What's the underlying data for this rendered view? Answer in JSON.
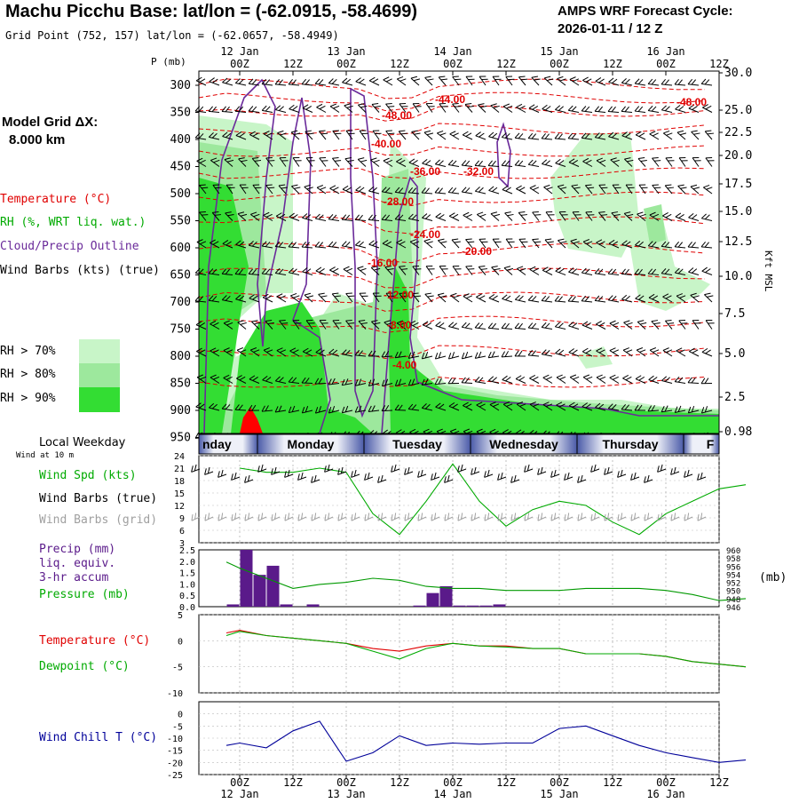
{
  "header": {
    "title": "Machu Picchu Base:  lat/lon = (-62.0915, -58.4699)",
    "subtitle": "Grid Point (752, 157) lat/lon = (-62.0657, -58.4949)",
    "cycle_line1": "AMPS WRF Forecast Cycle:",
    "cycle_line2": "2026-01-11 / 12  Z",
    "grid_label_line1": "Model Grid ΔX:",
    "grid_label_line2": "8.000 km"
  },
  "colors": {
    "temperature": "#e00000",
    "rh": "#00aa00",
    "cloud": "#6a2a9a",
    "precip": "#5a1a8a",
    "pressure": "#009900",
    "windchill": "#000099",
    "rh70": "#c8f5c8",
    "rh80": "#9de89d",
    "rh90": "#33dd33",
    "grid_barbs": "#a0a0a0"
  },
  "time_axis": {
    "date_labels_top": [
      "12 Jan",
      "13 Jan",
      "14 Jan",
      "15 Jan",
      "16 Jan"
    ],
    "hour_labels": [
      "00Z",
      "12Z",
      "00Z",
      "12Z",
      "00Z",
      "12Z",
      "00Z",
      "12Z",
      "00Z",
      "12Z"
    ],
    "weekdays": [
      "nday",
      "Monday",
      "Tuesday",
      "Wednesday",
      "Thursday",
      "F"
    ],
    "weekday_label": "Local Weekday"
  },
  "upper_panel": {
    "p_axis_label": "P (mb)",
    "pressure_ticks": [
      "300",
      "350",
      "400",
      "450",
      "500",
      "550",
      "600",
      "650",
      "700",
      "750",
      "800",
      "850",
      "900",
      "950"
    ],
    "height_ticks": [
      "30.0",
      "25.0",
      "22.5",
      "20.0",
      "17.5",
      "15.0",
      "12.5",
      "10.0",
      "7.5",
      "5.0",
      "2.5",
      "0.98"
    ],
    "height_axis_label": "Kft MSL",
    "legend": {
      "temperature": "Temperature (°C)",
      "rh": "RH (%, WRT liq. wat.)",
      "cloud": "Cloud/Precip Outline",
      "wind": "Wind Barbs (kts) (true)"
    },
    "rh_legend": [
      "RH > 70%",
      "RH > 80%",
      "RH > 90%"
    ],
    "isotherm_labels": [
      "-44.00",
      "-48.00",
      "-48.00",
      "-40.00",
      "-36.00",
      "-32.00",
      "-28.00",
      "-24.00",
      "-20.00",
      "-16.00",
      "-12.00",
      "-8.00",
      "-4.00"
    ]
  },
  "wind_panel": {
    "title": "Wind at 10 m",
    "labels": [
      "Wind Spd (kts)",
      "Wind Barbs (true)",
      "Wind Barbs (grid)"
    ],
    "yticks": [
      "24",
      "21",
      "18",
      "15",
      "12",
      "9",
      "6",
      "3"
    ]
  },
  "precip_panel": {
    "labels": [
      "Precip (mm)",
      "liq. equiv.",
      "3-hr accum",
      "Pressure (mb)"
    ],
    "left_ticks": [
      "2.5",
      "2.0",
      "1.5",
      "1.0",
      "0.5",
      "0.0"
    ],
    "right_ticks": [
      "960",
      "958",
      "956",
      "954",
      "952",
      "950",
      "948",
      "946"
    ],
    "unit": "(mb)"
  },
  "temp_panel": {
    "labels": [
      "Temperature (°C)",
      "Dewpoint (°C)"
    ],
    "yticks": [
      "5",
      "0",
      "-5",
      "-10"
    ]
  },
  "chill_panel": {
    "label": "Wind Chill T (°C)",
    "yticks": [
      "0",
      "-5",
      "-10",
      "-15",
      "-20",
      "-25"
    ]
  },
  "chart_data": [
    {
      "type": "line",
      "name": "wind-speed-10m",
      "x_hours": [
        0,
        6,
        12,
        18,
        24,
        30,
        36,
        42,
        48,
        54,
        60,
        66,
        72,
        78,
        84,
        90,
        96,
        102,
        108,
        114
      ],
      "series": [
        {
          "name": "Wind Spd (kts)",
          "values": [
            21,
            20,
            20,
            21,
            20,
            10,
            5,
            13,
            22,
            13,
            7,
            11,
            13,
            12,
            8,
            5,
            10,
            13,
            16,
            17
          ]
        }
      ],
      "ylim": [
        3,
        24
      ]
    },
    {
      "type": "bar",
      "name": "precip-3hr",
      "x_hours": [
        -1.5,
        1.5,
        4.5,
        7.5,
        10.5,
        13.5,
        16.5,
        19.5,
        22.5,
        25.5,
        28.5,
        31.5,
        34.5,
        37.5,
        40.5,
        43.5,
        46.5,
        49.5,
        52.5,
        55.5,
        58.5,
        61.5,
        64.5
      ],
      "values": [
        0.1,
        2.5,
        1.4,
        1.8,
        0.1,
        0,
        0.1,
        0,
        0,
        0,
        0,
        0,
        0,
        0,
        0.05,
        0.6,
        0.9,
        0.05,
        0.05,
        0.05,
        0.1,
        0,
        0
      ],
      "ylim": [
        0,
        2.5
      ]
    },
    {
      "type": "line",
      "name": "pressure",
      "x_hours": [
        -3,
        0,
        6,
        12,
        18,
        24,
        30,
        36,
        42,
        48,
        54,
        60,
        66,
        72,
        78,
        84,
        90,
        96,
        102,
        108,
        114
      ],
      "series": [
        {
          "name": "Pressure (mb)",
          "values": [
            957.0,
            955.5,
            953.0,
            950.5,
            951.5,
            952.0,
            953.0,
            952.5,
            951.0,
            950.5,
            950.5,
            950.0,
            950.0,
            950.0,
            950.5,
            950.5,
            950.5,
            950.0,
            949.0,
            947.5,
            948.0
          ]
        }
      ],
      "ylim": [
        946,
        960
      ]
    },
    {
      "type": "line",
      "name": "temperature-dewpoint",
      "x_hours": [
        -3,
        0,
        6,
        12,
        18,
        24,
        30,
        36,
        42,
        48,
        54,
        60,
        66,
        72,
        78,
        84,
        90,
        96,
        102,
        108,
        114
      ],
      "series": [
        {
          "name": "Temperature (°C)",
          "values": [
            1.5,
            2.0,
            1.0,
            0.5,
            0.0,
            -0.5,
            -1.5,
            -2.0,
            -1.0,
            -0.5,
            -1.0,
            -1.0,
            -1.5,
            -1.5,
            -2.5,
            -2.5,
            -2.5,
            -3.0,
            -4.0,
            -4.5,
            -5.0
          ]
        },
        {
          "name": "Dewpoint (°C)",
          "values": [
            1.0,
            1.8,
            1.0,
            0.5,
            0.0,
            -0.5,
            -2.0,
            -3.5,
            -1.5,
            -0.5,
            -1.0,
            -1.2,
            -1.5,
            -1.5,
            -2.5,
            -2.5,
            -2.5,
            -3.0,
            -4.0,
            -4.5,
            -5.0
          ]
        }
      ],
      "ylim": [
        -10,
        5
      ]
    },
    {
      "type": "line",
      "name": "wind-chill",
      "x_hours": [
        -3,
        0,
        6,
        12,
        18,
        24,
        30,
        36,
        42,
        48,
        54,
        60,
        66,
        72,
        78,
        84,
        90,
        96,
        102,
        108,
        114
      ],
      "series": [
        {
          "name": "Wind Chill T (°C)",
          "values": [
            -13,
            -12,
            -14,
            -7,
            -3,
            -19.5,
            -16,
            -9,
            -13,
            -12,
            -12.5,
            -12,
            -12,
            -6,
            -5,
            -9,
            -13,
            -16,
            -18,
            -20,
            -19
          ]
        }
      ],
      "ylim": [
        -25,
        5
      ]
    }
  ]
}
